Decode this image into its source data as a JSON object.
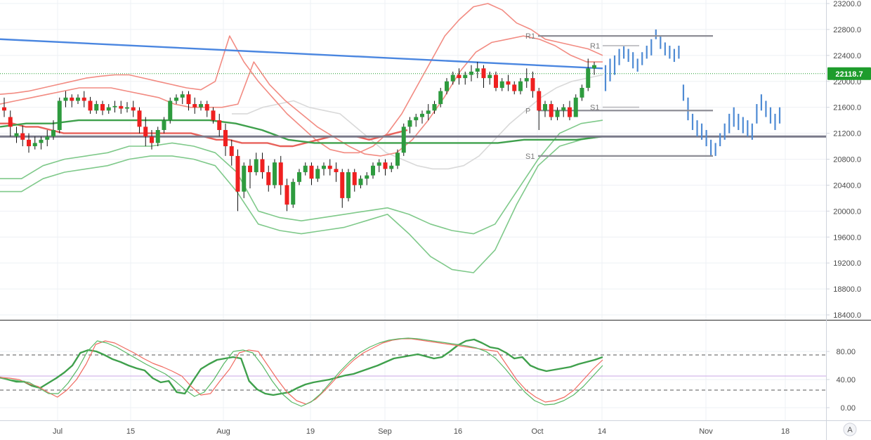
{
  "chart_data": [
    {
      "type": "candlestick",
      "title": "",
      "xlabel": "",
      "ylabel": "",
      "ylim": [
        18200,
        23200
      ],
      "y_ticks": [
        "23200.0",
        "22800.0",
        "22400.0",
        "22000.0",
        "21600.0",
        "21200.0",
        "20800.0",
        "20400.0",
        "20000.0",
        "19600.0",
        "19200.0",
        "18800.0",
        "18400.0"
      ],
      "x_ticks": [
        "Jul",
        "15",
        "Aug",
        "19",
        "Sep",
        "16",
        "Oct",
        "14",
        "Nov",
        "18"
      ],
      "last_price": "22118.7",
      "colors": {
        "up": "#2e9b3e",
        "down": "#ef2020",
        "trendline": "#4a86e0",
        "projection": "#4f8bd4",
        "upper_bands": "#f28b82",
        "lower_bands": "#7fc98a",
        "support_line": "#7a7a8a",
        "last_price_label": "#1e9c2c"
      },
      "pivot_labels": {
        "left": [
          "R1",
          "P",
          "S1"
        ],
        "right": [
          "R1",
          "S1"
        ]
      },
      "pivot_levels": {
        "R1_left": 22700,
        "P": 21550,
        "S1_left": 20850,
        "R1_right": 22550,
        "S1_right": 21600
      },
      "horizontal_levels": {
        "support": 21150,
        "last_price": 22118.7
      },
      "candles": [
        [
          21600,
          21750,
          21550,
          21450
        ],
        [
          21450,
          21550,
          21300,
          21150
        ],
        [
          21150,
          21300,
          21200,
          21050
        ],
        [
          21200,
          21320,
          21100,
          21000
        ],
        [
          21100,
          21200,
          21000,
          20900
        ],
        [
          21000,
          21150,
          21050,
          20950
        ],
        [
          21050,
          21150,
          21100,
          20950
        ],
        [
          21100,
          21250,
          21150,
          21000
        ],
        [
          21150,
          21400,
          21250,
          21100
        ],
        [
          21250,
          21750,
          21700,
          21200
        ],
        [
          21700,
          21850,
          21750,
          21600
        ],
        [
          21750,
          21800,
          21700,
          21600
        ],
        [
          21700,
          21800,
          21750,
          21650
        ],
        [
          21750,
          21850,
          21700,
          21600
        ],
        [
          21700,
          21760,
          21550,
          21500
        ],
        [
          21550,
          21700,
          21650,
          21500
        ],
        [
          21650,
          21700,
          21550,
          21480
        ],
        [
          21550,
          21650,
          21600,
          21500
        ],
        [
          21600,
          21700,
          21620,
          21520
        ],
        [
          21620,
          21700,
          21580,
          21500
        ],
        [
          21580,
          21680,
          21600,
          21520
        ],
        [
          21600,
          21700,
          21550,
          21450
        ],
        [
          21550,
          21600,
          21300,
          21200
        ],
        [
          21300,
          21450,
          21150,
          21000
        ],
        [
          21150,
          21250,
          21050,
          20950
        ],
        [
          21050,
          21300,
          21250,
          21000
        ],
        [
          21250,
          21450,
          21400,
          21200
        ],
        [
          21400,
          21750,
          21700,
          21350
        ],
        [
          21700,
          21800,
          21750,
          21650
        ],
        [
          21750,
          21850,
          21800,
          21650
        ],
        [
          21800,
          21850,
          21650,
          21550
        ],
        [
          21650,
          21750,
          21600,
          21500
        ],
        [
          21600,
          21700,
          21650,
          21550
        ],
        [
          21650,
          21700,
          21550,
          21450
        ],
        [
          21550,
          21600,
          21400,
          21350
        ],
        [
          21400,
          21500,
          21250,
          21150
        ],
        [
          21250,
          21350,
          21000,
          20850
        ],
        [
          21000,
          21100,
          20850,
          20700
        ],
        [
          20850,
          20950,
          20300,
          20000
        ],
        [
          20300,
          20750,
          20700,
          20200
        ],
        [
          20700,
          20800,
          20600,
          20350
        ],
        [
          20600,
          20900,
          20800,
          20550
        ],
        [
          20800,
          20900,
          20600,
          20500
        ],
        [
          20600,
          20700,
          20400,
          20300
        ],
        [
          20400,
          20800,
          20750,
          20350
        ],
        [
          20750,
          20850,
          20400,
          20250
        ],
        [
          20400,
          20500,
          20100,
          20000
        ],
        [
          20100,
          20500,
          20450,
          20050
        ],
        [
          20450,
          20650,
          20600,
          20400
        ],
        [
          20600,
          20750,
          20700,
          20550
        ],
        [
          20700,
          20750,
          20500,
          20400
        ],
        [
          20500,
          20700,
          20650,
          20450
        ],
        [
          20650,
          20750,
          20700,
          20550
        ],
        [
          20700,
          20800,
          20650,
          20550
        ],
        [
          20650,
          20750,
          20600,
          20450
        ],
        [
          20600,
          20650,
          20200,
          20050
        ],
        [
          20200,
          20650,
          20600,
          20150
        ],
        [
          20600,
          20650,
          20400,
          20300
        ],
        [
          20400,
          20550,
          20500,
          20350
        ],
        [
          20500,
          20600,
          20550,
          20400
        ],
        [
          20550,
          20750,
          20700,
          20500
        ],
        [
          20700,
          20800,
          20750,
          20600
        ],
        [
          20750,
          20800,
          20650,
          20550
        ],
        [
          20650,
          20750,
          20700,
          20600
        ],
        [
          20700,
          20950,
          20900,
          20650
        ],
        [
          20900,
          21350,
          21300,
          20850
        ],
        [
          21300,
          21450,
          21400,
          21200
        ],
        [
          21400,
          21500,
          21450,
          21300
        ],
        [
          21450,
          21550,
          21500,
          21350
        ],
        [
          21500,
          21650,
          21550,
          21400
        ],
        [
          21550,
          21700,
          21650,
          21500
        ],
        [
          21650,
          21900,
          21850,
          21600
        ],
        [
          21850,
          22050,
          22000,
          21800
        ],
        [
          22000,
          22150,
          22100,
          21950
        ],
        [
          22100,
          22200,
          22050,
          21950
        ],
        [
          22050,
          22150,
          22100,
          21950
        ],
        [
          22100,
          22250,
          22150,
          22000
        ],
        [
          22150,
          22300,
          22200,
          22050
        ],
        [
          22200,
          22250,
          22050,
          21900
        ],
        [
          22050,
          22150,
          22100,
          21950
        ],
        [
          22100,
          22150,
          21900,
          21850
        ],
        [
          21900,
          22050,
          22000,
          21850
        ],
        [
          22000,
          22100,
          21950,
          21850
        ],
        [
          21950,
          22000,
          21850,
          21800
        ],
        [
          21850,
          22050,
          22000,
          21800
        ],
        [
          22000,
          22200,
          22050,
          21900
        ],
        [
          22050,
          22150,
          21850,
          21750
        ],
        [
          21850,
          21900,
          21550,
          21250
        ],
        [
          21550,
          21700,
          21650,
          21450
        ],
        [
          21650,
          21700,
          21450,
          21400
        ],
        [
          21450,
          21600,
          21550,
          21400
        ],
        [
          21550,
          21650,
          21600,
          21450
        ],
        [
          21600,
          21700,
          21450,
          21400
        ],
        [
          21450,
          21800,
          21750,
          21450
        ],
        [
          21750,
          21950,
          21900,
          21700
        ],
        [
          21900,
          22350,
          22200,
          21850
        ],
        [
          22200,
          22300,
          22250,
          22100
        ]
      ],
      "overlays": {
        "trendline": [
          22650,
          22200
        ],
        "upper_band_1": [
          21800,
          21820,
          21850,
          21900,
          21950,
          22000,
          22050,
          22080,
          22100,
          22100,
          22050,
          22000,
          21950,
          21900,
          21870,
          22000,
          22700,
          22300,
          22000,
          21750,
          21500,
          21300,
          21100,
          20950,
          20900,
          20900,
          21000,
          21200,
          21500,
          21900,
          22300,
          22700,
          22950,
          23150,
          23200,
          23100,
          22900,
          22800,
          22650,
          22600,
          22550,
          22500,
          22400
        ],
        "upper_band_2": [
          21650,
          21700,
          21750,
          21800,
          21850,
          21900,
          21900,
          21900,
          21850,
          21800,
          21750,
          21650,
          21600,
          21600,
          21600,
          21650,
          22300,
          21950,
          21700,
          21500,
          21300,
          21150,
          21000,
          20880,
          20850,
          20900,
          21100,
          21400,
          21750,
          22150,
          22450,
          22600,
          22650,
          22700,
          22650,
          22550,
          22400,
          22300,
          22300
        ],
        "ma_red": [
          21350,
          21350,
          21300,
          21300,
          21250,
          21200,
          21200,
          21200,
          21200,
          21200,
          21200,
          21200,
          21200,
          21200,
          21200,
          21200,
          21150,
          21100,
          21100,
          21050,
          21050,
          21050,
          21000,
          21000,
          21050,
          21100,
          21150,
          21150,
          21150,
          21100,
          21150,
          21200,
          21250
        ],
        "ma_grey": [
          21500,
          21500,
          21600,
          21650,
          21700,
          21600,
          21550,
          21500,
          21300,
          21100,
          20900,
          20800,
          20700,
          20650,
          20650,
          20700,
          20850,
          21100,
          21350,
          21550,
          21750,
          21900,
          22000,
          22050,
          22100
        ],
        "ma_green": [
          21300,
          21350,
          21350,
          21400,
          21400,
          21400,
          21400,
          21400,
          21400,
          21350,
          21250,
          21100,
          21050,
          21050,
          21050,
          21050,
          21050,
          21050,
          21050,
          21050,
          21100,
          21100,
          21100,
          21150
        ],
        "lower_band_1": [
          20500,
          20500,
          20700,
          20800,
          20850,
          20900,
          21000,
          21000,
          21050,
          21000,
          20900,
          20600,
          20000,
          19900,
          19850,
          19900,
          19950,
          20000,
          20050,
          19950,
          19800,
          19700,
          19650,
          19800,
          20300,
          20800,
          21200,
          21350,
          21400
        ],
        "lower_band_2": [
          20300,
          20300,
          20500,
          20600,
          20650,
          20700,
          20800,
          20850,
          20850,
          20800,
          20700,
          20300,
          19800,
          19700,
          19650,
          19700,
          19750,
          19850,
          19950,
          19650,
          19300,
          19100,
          19050,
          19400,
          20100,
          20700,
          21000,
          21100,
          21150
        ]
      },
      "projection_bars": [
        [
          22250,
          21850
        ],
        [
          22350,
          22000
        ],
        [
          22400,
          22100
        ],
        [
          22500,
          22250
        ],
        [
          22550,
          22350
        ],
        [
          22500,
          22300
        ],
        [
          22450,
          22200
        ],
        [
          22350,
          22150
        ],
        [
          22450,
          22250
        ],
        [
          22550,
          22350
        ],
        [
          22650,
          22400
        ],
        [
          22800,
          22650
        ],
        [
          22700,
          22500
        ],
        [
          22600,
          22400
        ],
        [
          22550,
          22350
        ],
        [
          22500,
          22300
        ],
        [
          22550,
          22350
        ],
        [
          21950,
          21700
        ],
        [
          21750,
          21400
        ],
        [
          21500,
          21250
        ],
        [
          21400,
          21150
        ],
        [
          21350,
          21100
        ],
        [
          21250,
          21000
        ],
        [
          21100,
          20850
        ],
        [
          21050,
          20850
        ],
        [
          21200,
          21000
        ],
        [
          21350,
          21100
        ],
        [
          21500,
          21200
        ],
        [
          21600,
          21300
        ],
        [
          21500,
          21250
        ],
        [
          21450,
          21200
        ],
        [
          21400,
          21150
        ],
        [
          21350,
          21100
        ],
        [
          21650,
          21350
        ],
        [
          21800,
          21550
        ],
        [
          21700,
          21450
        ],
        [
          21600,
          21350
        ],
        [
          21500,
          21250
        ],
        [
          21600,
          21350
        ]
      ],
      "future_points": {
        "R1_x_label": "R1",
        "S1_x_label": "S1"
      }
    },
    {
      "type": "line",
      "title": "",
      "ylim": [
        -10,
        110
      ],
      "y_ticks": [
        "80.00",
        "40.00",
        "0.00"
      ],
      "levels": [
        75,
        25
      ],
      "mid_level": 45,
      "series": [
        {
          "values": [
            43,
            40,
            37,
            37,
            31,
            28,
            35,
            42,
            50,
            60,
            78,
            82,
            80,
            75,
            69,
            65,
            60,
            56,
            53,
            42,
            36,
            38,
            22,
            20,
            38,
            55,
            62,
            68,
            70,
            72,
            70,
            38,
            26,
            20,
            18,
            20,
            22,
            28,
            33,
            36,
            38,
            40,
            43,
            46,
            48,
            52,
            56,
            60,
            65,
            70,
            72,
            74,
            76,
            73,
            70,
            72,
            80,
            89,
            95,
            97,
            92,
            86,
            84,
            78,
            70,
            72,
            60,
            55,
            52,
            54,
            56,
            58,
            62,
            65,
            68,
            72
          ]
        },
        {
          "values": [
            43,
            42,
            40,
            34,
            30,
            22,
            15,
            25,
            40,
            62,
            90,
            95,
            92,
            85,
            78,
            70,
            63,
            58,
            52,
            45,
            30,
            18,
            20,
            38,
            55,
            78,
            82,
            80,
            60,
            40,
            22,
            10,
            5,
            12,
            25,
            40,
            55,
            68,
            78,
            85,
            92,
            96,
            98,
            98,
            96,
            94,
            92,
            90,
            88,
            86,
            84,
            82,
            80,
            60,
            40,
            25,
            15,
            8,
            10,
            15,
            25,
            40,
            55,
            68
          ]
        },
        {
          "values": [
            42,
            40,
            38,
            36,
            28,
            20,
            20,
            35,
            55,
            80,
            95,
            92,
            86,
            78,
            70,
            62,
            55,
            48,
            38,
            26,
            16,
            22,
            40,
            62,
            80,
            82,
            78,
            60,
            38,
            20,
            8,
            2,
            8,
            20,
            36,
            52,
            66,
            78,
            86,
            92,
            96,
            98,
            99,
            98,
            96,
            94,
            92,
            90,
            88,
            85,
            80,
            70,
            55,
            38,
            22,
            10,
            4,
            5,
            10,
            18,
            30,
            45,
            60
          ]
        }
      ]
    }
  ]
}
